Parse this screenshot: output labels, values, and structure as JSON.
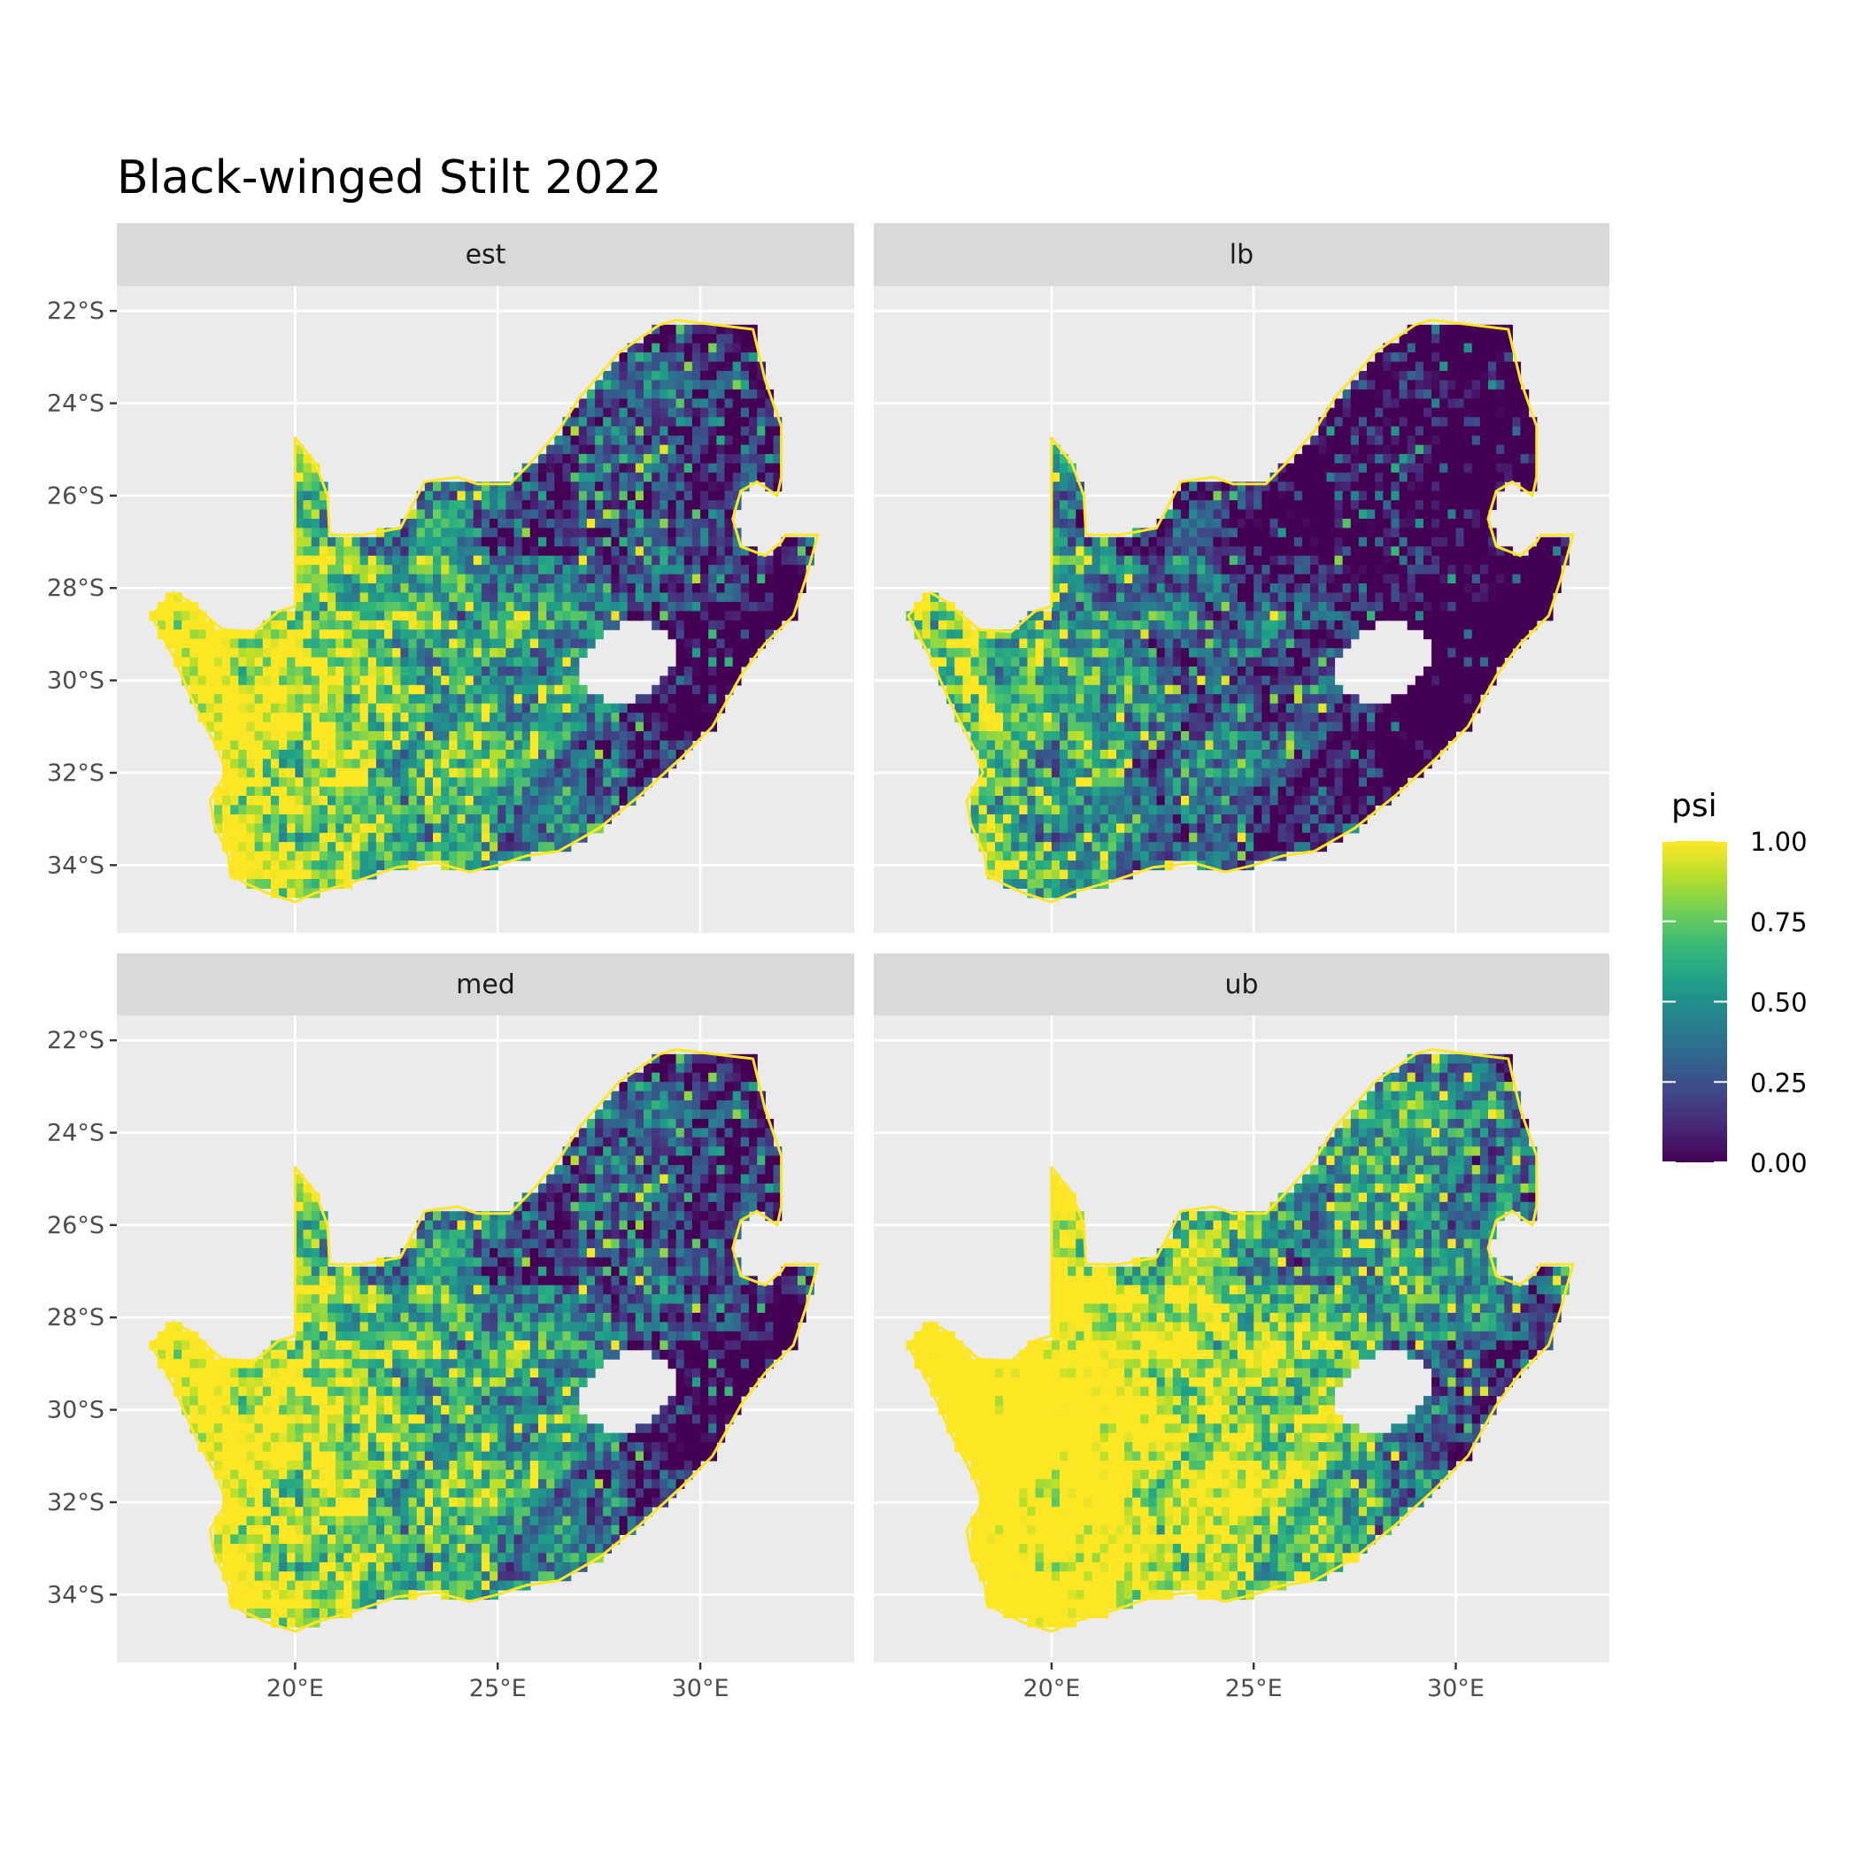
{
  "title": "Black-winged Stilt 2022",
  "chart_data": {
    "type": "heatmap",
    "title": "Black-winged Stilt 2022",
    "facets": [
      {
        "label": "est",
        "shift": 0.0
      },
      {
        "label": "lb",
        "shift": -0.3
      },
      {
        "label": "med",
        "shift": 0.02
      },
      {
        "label": "ub",
        "shift": 0.3
      }
    ],
    "x_ticks": [
      {
        "value": 20,
        "label": "20°E"
      },
      {
        "value": 25,
        "label": "25°E"
      },
      {
        "value": 30,
        "label": "30°E"
      }
    ],
    "y_ticks": [
      {
        "value": -22,
        "label": "22°S"
      },
      {
        "value": -24,
        "label": "24°S"
      },
      {
        "value": -26,
        "label": "26°S"
      },
      {
        "value": -28,
        "label": "28°S"
      },
      {
        "value": -30,
        "label": "30°S"
      },
      {
        "value": -32,
        "label": "32°S"
      },
      {
        "value": -34,
        "label": "34°S"
      }
    ],
    "xlim": [
      15.6,
      33.8
    ],
    "ylim": [
      -35.47,
      -21.46
    ],
    "legend": {
      "title": "psi",
      "position": "right",
      "range": [
        0,
        1
      ],
      "ticks": [
        {
          "value": 1.0,
          "label": "1.00"
        },
        {
          "value": 0.75,
          "label": "0.75"
        },
        {
          "value": 0.5,
          "label": "0.50"
        },
        {
          "value": 0.25,
          "label": "0.25"
        },
        {
          "value": 0.0,
          "label": "0.00"
        }
      ],
      "colormap": [
        "#440154",
        "#482878",
        "#3e4989",
        "#31688e",
        "#26828e",
        "#1f9e89",
        "#35b779",
        "#6ece58",
        "#b5de2b",
        "#fde725"
      ]
    },
    "colors": {
      "panel_bg": "#ebebeb",
      "strip_bg": "#d9d9d9",
      "grid": "#ffffff"
    }
  }
}
